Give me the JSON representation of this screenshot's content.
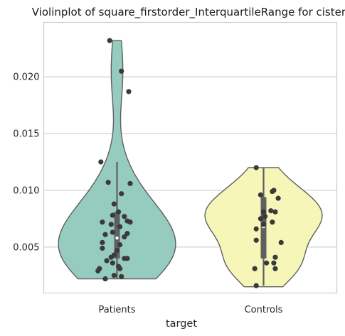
{
  "chart_data": {
    "type": "violin",
    "title": "Violinplot of square_firstorder_InterquartileRange for cistern",
    "xlabel": "target",
    "ylabel": "",
    "categories": [
      "Patients",
      "Controls"
    ],
    "colors": [
      "#96cbc0",
      "#f7f6b9"
    ],
    "outline_color": "#5f5f5f",
    "point_color": "#3a3a3a",
    "ylim": [
      0.00095,
      0.0248
    ],
    "yticks": [
      0.005,
      0.01,
      0.015,
      0.02
    ],
    "ytick_labels": [
      "0.005",
      "0.010",
      "0.015",
      "0.020"
    ],
    "grid": true,
    "series": [
      {
        "category": "Patients",
        "quartiles": [
          0.004,
          0.0058,
          0.0081
        ],
        "whiskers": [
          0.0022,
          0.0125
        ],
        "range": [
          0.0022,
          0.0232
        ],
        "points": [
          [
            -0.05,
            0.0232
          ],
          [
            0.03,
            0.0205
          ],
          [
            0.08,
            0.0187
          ],
          [
            -0.11,
            0.0125
          ],
          [
            -0.06,
            0.0107
          ],
          [
            0.09,
            0.0106
          ],
          [
            0.03,
            0.0097
          ],
          [
            -0.02,
            0.0088
          ],
          [
            0.01,
            0.0081
          ],
          [
            -0.03,
            0.0078
          ],
          [
            0.05,
            0.0077
          ],
          [
            0.07,
            0.0073
          ],
          [
            -0.1,
            0.0072
          ],
          [
            0.09,
            0.0072
          ],
          [
            -0.04,
            0.007
          ],
          [
            0.02,
            0.0068
          ],
          [
            -0.03,
            0.0063
          ],
          [
            0.07,
            0.0062
          ],
          [
            -0.08,
            0.0061
          ],
          [
            0.05,
            0.0059
          ],
          [
            -0.1,
            0.0054
          ],
          [
            0.02,
            0.0052
          ],
          [
            -0.1,
            0.0049
          ],
          [
            0.0,
            0.0047
          ],
          [
            -0.02,
            0.0043
          ],
          [
            -0.04,
            0.0041
          ],
          [
            0.05,
            0.004
          ],
          [
            0.07,
            0.004
          ],
          [
            -0.07,
            0.0038
          ],
          [
            -0.03,
            0.0036
          ],
          [
            0.01,
            0.0033
          ],
          [
            0.02,
            0.0031
          ],
          [
            -0.12,
            0.0031
          ],
          [
            -0.13,
            0.0029
          ],
          [
            -0.02,
            0.0025
          ],
          [
            0.03,
            0.0024
          ],
          [
            -0.08,
            0.0022
          ]
        ]
      },
      {
        "category": "Controls",
        "quartiles": [
          0.004,
          0.0068,
          0.0094
        ],
        "whiskers": [
          0.0016,
          0.012
        ],
        "range": [
          0.0015,
          0.012
        ],
        "points": [
          [
            -0.05,
            0.012
          ],
          [
            0.07,
            0.01
          ],
          [
            0.06,
            0.0099
          ],
          [
            -0.02,
            0.0096
          ],
          [
            0.1,
            0.0093
          ],
          [
            0.05,
            0.0082
          ],
          [
            0.0,
            0.0081
          ],
          [
            0.08,
            0.0081
          ],
          [
            0.01,
            0.0077
          ],
          [
            -0.02,
            0.0075
          ],
          [
            0.06,
            0.0072
          ],
          [
            0.0,
            0.007
          ],
          [
            -0.05,
            0.0066
          ],
          [
            -0.05,
            0.0056
          ],
          [
            0.12,
            0.0054
          ],
          [
            0.08,
            0.0041
          ],
          [
            0.07,
            0.0036
          ],
          [
            0.02,
            0.0036
          ],
          [
            -0.06,
            0.0031
          ],
          [
            0.08,
            0.0031
          ],
          [
            -0.05,
            0.0016
          ]
        ]
      }
    ]
  }
}
